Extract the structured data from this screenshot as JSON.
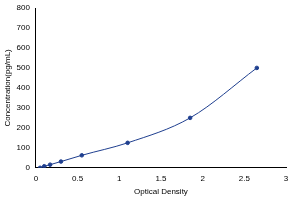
{
  "chart_data": {
    "type": "scatter",
    "x_label": "Optical Density",
    "y_label": "Concentration(pg/mL)",
    "x": [
      0.05,
      0.1,
      0.17,
      0.3,
      0.55,
      1.1,
      1.85,
      2.65
    ],
    "values": [
      0,
      7.8,
      15.6,
      31.25,
      62.5,
      125,
      250,
      500
    ],
    "color": "#1f3f8f",
    "marker": "circle",
    "line_style": "solid",
    "xlim": [
      0,
      3
    ],
    "xticks": [
      0,
      0.5,
      1,
      1.5,
      2,
      2.5,
      3
    ],
    "ylim": [
      0,
      800
    ],
    "yticks": [
      0,
      100,
      200,
      300,
      400,
      500,
      600,
      700,
      800
    ],
    "grid": false
  }
}
